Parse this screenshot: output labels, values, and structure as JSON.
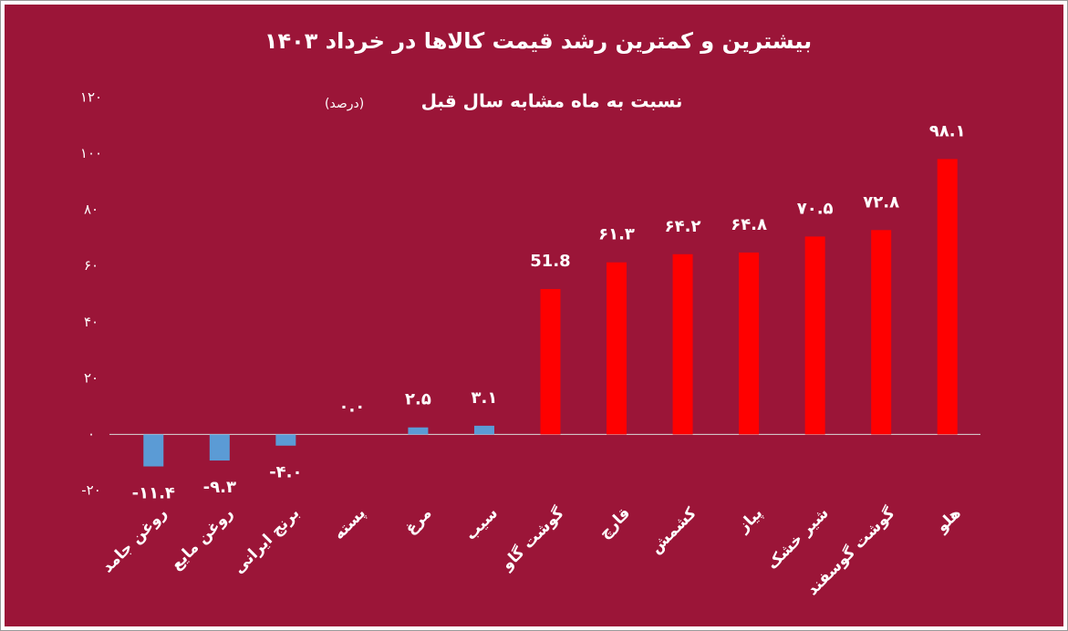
{
  "chart_data": {
    "type": "bar",
    "title": "بیشترین و کمترین رشد قیمت کالاها در خرداد ۱۴۰۳",
    "subtitle": "نسبت به ماه مشابه سال قبل",
    "unit": "(درصد)",
    "categories": [
      "روغن جامد",
      "روغن مایع",
      "برنج ایرانی",
      "پسته",
      "مرغ",
      "سیب",
      "گوشت گاو",
      "قارچ",
      "کشمش",
      "پیاز",
      "شیر خشک",
      "گوشت گوسفند",
      "هلو"
    ],
    "values": [
      -11.4,
      -9.3,
      -4.0,
      0.0,
      2.5,
      3.1,
      51.8,
      61.3,
      64.2,
      64.8,
      70.5,
      72.8,
      98.1
    ],
    "value_labels": [
      "-۱۱.۴",
      "-۹.۳",
      "-۴.۰",
      "۰.۰",
      "۲.۵",
      "۳.۱",
      "51.8",
      "۶۱.۳",
      "۶۴.۲",
      "۶۴.۸",
      "۷۰.۵",
      "۷۲.۸",
      "۹۸.۱"
    ],
    "colors": [
      "#5b9bd5",
      "#5b9bd5",
      "#5b9bd5",
      "#5b9bd5",
      "#5b9bd5",
      "#5b9bd5",
      "#ff0000",
      "#ff0000",
      "#ff0000",
      "#ff0000",
      "#ff0000",
      "#ff0000",
      "#ff0000"
    ],
    "ylim": [
      -20,
      120
    ],
    "yticks": [
      {
        "value": -20,
        "label": "-۲۰"
      },
      {
        "value": 0,
        "label": "۰"
      },
      {
        "value": 20,
        "label": "۲۰"
      },
      {
        "value": 40,
        "label": "۴۰"
      },
      {
        "value": 60,
        "label": "۶۰"
      },
      {
        "value": 80,
        "label": "۸۰"
      },
      {
        "value": 100,
        "label": "۱۰۰"
      },
      {
        "value": 120,
        "label": "۱۲۰"
      }
    ],
    "grid": false
  }
}
